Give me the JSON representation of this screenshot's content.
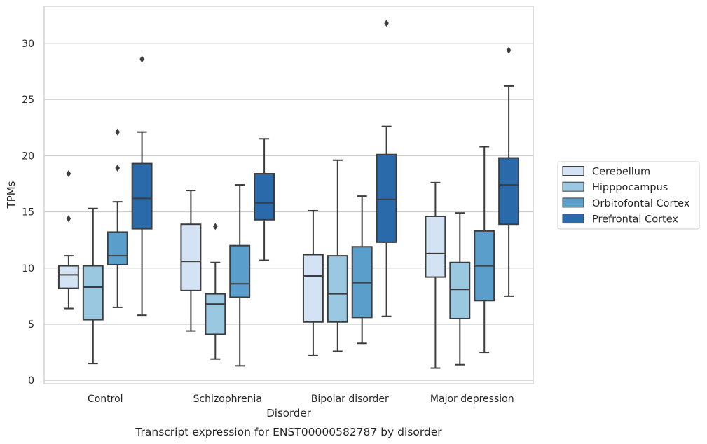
{
  "chart_data": {
    "type": "box",
    "title": "",
    "caption": "Transcript expression for ENST00000582787 by disorder",
    "xlabel": "Disorder",
    "ylabel": "TPMs",
    "ylim": [
      -0.3,
      33.3
    ],
    "yticks": [
      0,
      5,
      10,
      15,
      20,
      25,
      30
    ],
    "grid": "horizontal",
    "legend_position": "right",
    "categories": [
      "Control",
      "Schizophrenia",
      "Bipolar disorder",
      "Major depression"
    ],
    "series": [
      {
        "name": "Cerebellum",
        "color": "#d3e3f3",
        "boxes": [
          {
            "whisker_low": 6.4,
            "q1": 8.2,
            "median": 9.4,
            "q3": 10.2,
            "whisker_high": 11.1,
            "outliers": [
              14.4,
              18.4
            ]
          },
          {
            "whisker_low": 4.4,
            "q1": 8.0,
            "median": 10.6,
            "q3": 13.9,
            "whisker_high": 16.9,
            "outliers": []
          },
          {
            "whisker_low": 2.2,
            "q1": 5.2,
            "median": 9.3,
            "q3": 11.2,
            "whisker_high": 15.1,
            "outliers": []
          },
          {
            "whisker_low": 1.1,
            "q1": 9.2,
            "median": 11.3,
            "q3": 14.6,
            "whisker_high": 17.6,
            "outliers": []
          }
        ]
      },
      {
        "name": "Hipppocampus",
        "color": "#9ac8e0",
        "boxes": [
          {
            "whisker_low": 1.5,
            "q1": 5.4,
            "median": 8.3,
            "q3": 10.2,
            "whisker_high": 15.3,
            "outliers": []
          },
          {
            "whisker_low": 1.9,
            "q1": 4.1,
            "median": 6.8,
            "q3": 7.7,
            "whisker_high": 10.5,
            "outliers": [
              13.7
            ]
          },
          {
            "whisker_low": 2.6,
            "q1": 5.2,
            "median": 7.7,
            "q3": 11.1,
            "whisker_high": 19.6,
            "outliers": []
          },
          {
            "whisker_low": 1.4,
            "q1": 5.5,
            "median": 8.1,
            "q3": 10.5,
            "whisker_high": 14.9,
            "outliers": []
          }
        ]
      },
      {
        "name": "Orbitofontal Cortex",
        "color": "#5a9ecb",
        "boxes": [
          {
            "whisker_low": 6.5,
            "q1": 10.3,
            "median": 11.1,
            "q3": 13.2,
            "whisker_high": 15.9,
            "outliers": [
              18.9,
              22.1
            ]
          },
          {
            "whisker_low": 1.3,
            "q1": 7.4,
            "median": 8.6,
            "q3": 12.0,
            "whisker_high": 17.4,
            "outliers": []
          },
          {
            "whisker_low": 3.3,
            "q1": 5.6,
            "median": 8.7,
            "q3": 11.9,
            "whisker_high": 16.4,
            "outliers": []
          },
          {
            "whisker_low": 2.5,
            "q1": 7.1,
            "median": 10.2,
            "q3": 13.3,
            "whisker_high": 20.8,
            "outliers": []
          }
        ]
      },
      {
        "name": "Prefrontal Cortex",
        "color": "#2a6aaa",
        "boxes": [
          {
            "whisker_low": 5.8,
            "q1": 13.5,
            "median": 16.2,
            "q3": 19.3,
            "whisker_high": 22.1,
            "outliers": [
              28.6
            ]
          },
          {
            "whisker_low": 10.7,
            "q1": 14.3,
            "median": 15.8,
            "q3": 18.4,
            "whisker_high": 21.5,
            "outliers": []
          },
          {
            "whisker_low": 5.7,
            "q1": 12.3,
            "median": 16.1,
            "q3": 20.1,
            "whisker_high": 22.6,
            "outliers": [
              31.8
            ]
          },
          {
            "whisker_low": 7.5,
            "q1": 13.9,
            "median": 17.4,
            "q3": 19.8,
            "whisker_high": 26.2,
            "outliers": [
              29.4
            ]
          }
        ]
      }
    ]
  }
}
